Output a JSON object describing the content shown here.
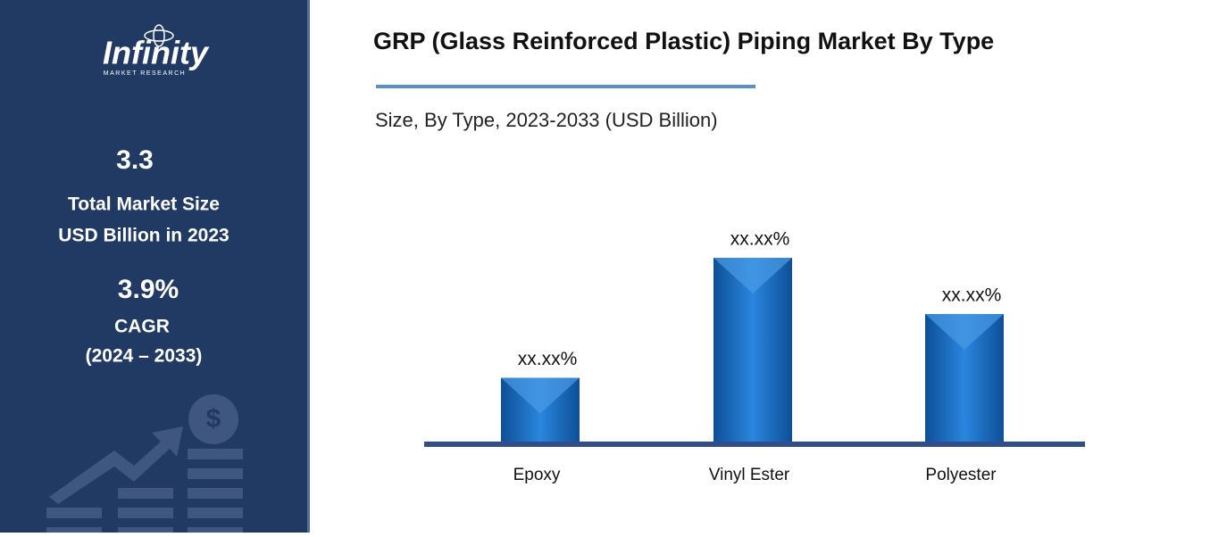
{
  "sidebar": {
    "logo": "Infinity",
    "logo_sub": "MARKET RESEARCH",
    "market_size": "3.3",
    "market_size_label_1": "Total Market Size",
    "market_size_label_2": "USD Billion in 2023",
    "cagr": "3.9%",
    "cagr_label": "CAGR",
    "cagr_period": "(2024 – 2033)"
  },
  "chart_data": {
    "type": "bar",
    "title": "GRP (Glass Reinforced Plastic) Piping Market By Type",
    "subtitle": "Size, By Type, 2023-2033 (USD Billion)",
    "categories": [
      "Epoxy",
      "Vinyl Ester",
      "Polyester"
    ],
    "values": [
      17,
      49,
      34
    ],
    "value_labels": [
      "xx.xx%",
      "xx.xx%",
      "xx.xx%"
    ],
    "color": "#1a6fc4"
  }
}
